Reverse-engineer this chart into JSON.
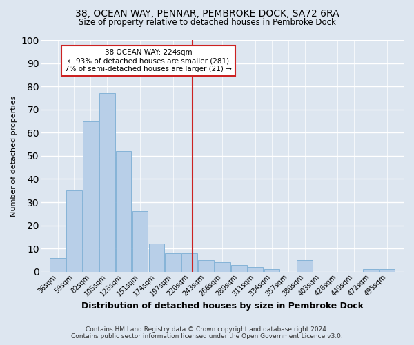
{
  "title": "38, OCEAN WAY, PENNAR, PEMBROKE DOCK, SA72 6RA",
  "subtitle": "Size of property relative to detached houses in Pembroke Dock",
  "xlabel": "Distribution of detached houses by size in Pembroke Dock",
  "ylabel": "Number of detached properties",
  "bar_labels": [
    "36sqm",
    "59sqm",
    "82sqm",
    "105sqm",
    "128sqm",
    "151sqm",
    "174sqm",
    "197sqm",
    "220sqm",
    "243sqm",
    "266sqm",
    "289sqm",
    "311sqm",
    "334sqm",
    "357sqm",
    "380sqm",
    "403sqm",
    "426sqm",
    "449sqm",
    "472sqm",
    "495sqm"
  ],
  "bar_values": [
    6,
    35,
    65,
    77,
    52,
    26,
    12,
    8,
    8,
    5,
    4,
    3,
    2,
    1,
    0,
    5,
    0,
    0,
    0,
    1,
    1
  ],
  "bar_color": "#b8cfe8",
  "bar_edge_color": "#7aadd4",
  "background_color": "#dde6f0",
  "grid_color": "#ffffff",
  "vline_color": "#cc2222",
  "annotation_title": "38 OCEAN WAY: 224sqm",
  "annotation_line1": "← 93% of detached houses are smaller (281)",
  "annotation_line2": "7% of semi-detached houses are larger (21) →",
  "annotation_box_color": "#ffffff",
  "annotation_box_edge": "#cc2222",
  "ylim": [
    0,
    100
  ],
  "yticks": [
    0,
    10,
    20,
    30,
    40,
    50,
    60,
    70,
    80,
    90,
    100
  ],
  "footer1": "Contains HM Land Registry data © Crown copyright and database right 2024.",
  "footer2": "Contains public sector information licensed under the Open Government Licence v3.0.",
  "title_fontsize": 10,
  "subtitle_fontsize": 8.5,
  "xlabel_fontsize": 9,
  "ylabel_fontsize": 8,
  "tick_fontsize": 7,
  "footer_fontsize": 6.5,
  "annot_fontsize": 7.5
}
